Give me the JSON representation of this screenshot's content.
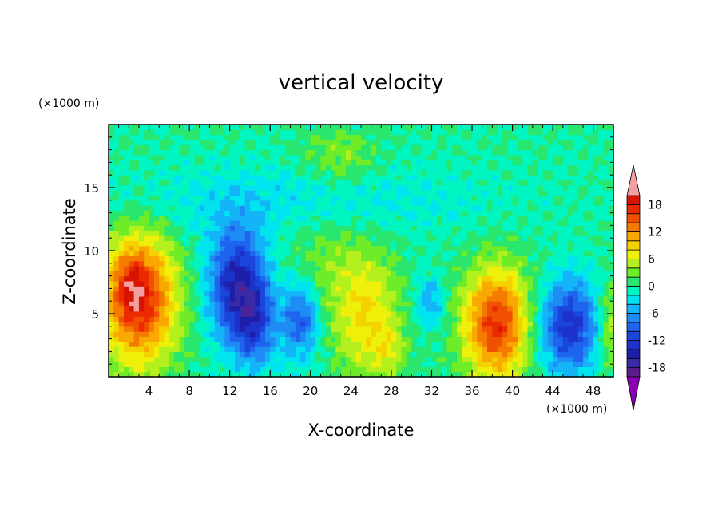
{
  "chart_data": {
    "type": "heatmap",
    "title": "vertical velocity",
    "xlabel": "X-coordinate",
    "ylabel": "Z-coordinate",
    "x_unit": "(×1000 m)",
    "y_unit": "(×1000 m)",
    "xlim": [
      0,
      50
    ],
    "ylim": [
      0,
      20
    ],
    "x_ticks": [
      "4",
      "8",
      "12",
      "16",
      "20",
      "24",
      "28",
      "32",
      "36",
      "40",
      "44",
      "48"
    ],
    "y_ticks": [
      "5",
      "10",
      "15"
    ],
    "colorbar": {
      "ticks": [
        "18",
        "12",
        "6",
        "0",
        "-6",
        "-12",
        "-18"
      ],
      "levels": [
        -20,
        -18,
        -16,
        -14,
        -12,
        -10,
        -8,
        -6,
        -4,
        -2,
        0,
        2,
        4,
        6,
        8,
        10,
        12,
        14,
        16,
        18,
        20
      ],
      "colors": [
        "#5a1e8c",
        "#3a2aa6",
        "#1e1ea8",
        "#1c32c8",
        "#1a46dc",
        "#1e64ee",
        "#1e8cf4",
        "#14b4f8",
        "#00e4f0",
        "#00f5c0",
        "#28e66e",
        "#6eec28",
        "#b4f01e",
        "#eef00a",
        "#f4d200",
        "#f8a800",
        "#f47a00",
        "#f05000",
        "#ec2a00",
        "#d81400"
      ],
      "under_color": "#8c00b4",
      "over_color": "#f4a0a0",
      "extend": "both"
    },
    "features": [
      {
        "x": 3.0,
        "z": 6.2,
        "sx": 2.6,
        "sz": 3.6,
        "w": 18
      },
      {
        "x": 2.2,
        "z": 7.2,
        "sx": 1.0,
        "sz": 1.6,
        "w": 4
      },
      {
        "x": 12.8,
        "z": 7.2,
        "sx": 2.0,
        "sz": 3.2,
        "w": -15
      },
      {
        "x": 14.6,
        "z": 4.0,
        "sx": 1.4,
        "sz": 2.4,
        "w": -8
      },
      {
        "x": 19.0,
        "z": 4.6,
        "sx": 1.3,
        "sz": 2.2,
        "w": -10
      },
      {
        "x": 25.5,
        "z": 5.0,
        "sx": 2.3,
        "sz": 3.6,
        "w": 8
      },
      {
        "x": 27.8,
        "z": 2.2,
        "sx": 1.2,
        "sz": 1.4,
        "w": 4
      },
      {
        "x": 31.8,
        "z": 6.0,
        "sx": 1.0,
        "sz": 1.4,
        "w": -6
      },
      {
        "x": 38.4,
        "z": 4.2,
        "sx": 2.3,
        "sz": 3.1,
        "w": 17
      },
      {
        "x": 45.6,
        "z": 4.0,
        "sx": 2.1,
        "sz": 2.6,
        "w": -13
      },
      {
        "x": 49.7,
        "z": 4.0,
        "sx": 0.8,
        "sz": 2.5,
        "w": 6
      },
      {
        "x": 17.5,
        "z": 14.0,
        "sx": 14.0,
        "sz": 2.0,
        "w": -3
      },
      {
        "x": 21.0,
        "z": 9.0,
        "sx": 2.6,
        "sz": 3.0,
        "w": 3
      },
      {
        "x": 23.0,
        "z": 17.5,
        "sx": 2.5,
        "sz": 1.5,
        "w": 4
      }
    ]
  }
}
